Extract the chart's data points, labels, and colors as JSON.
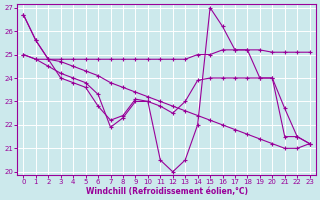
{
  "xlabel": "Windchill (Refroidissement éolien,°C)",
  "xlim_min": -0.5,
  "xlim_max": 23.5,
  "ylim_min": 19.85,
  "ylim_max": 27.15,
  "yticks": [
    20,
    21,
    22,
    23,
    24,
    25,
    26,
    27
  ],
  "xticks": [
    0,
    1,
    2,
    3,
    4,
    5,
    6,
    7,
    8,
    9,
    10,
    11,
    12,
    13,
    14,
    15,
    16,
    17,
    18,
    19,
    20,
    21,
    22,
    23
  ],
  "bg_color": "#cce9ec",
  "line_color": "#990099",
  "grid_color": "#ffffff",
  "series": [
    [
      26.7,
      25.6,
      24.8,
      24.7,
      24.5,
      24.3,
      24.1,
      23.8,
      23.6,
      23.4,
      23.2,
      23.0,
      22.8,
      22.6,
      22.4,
      22.2,
      22.0,
      21.8,
      21.6,
      21.4,
      21.2,
      21.0,
      21.0,
      21.2
    ],
    [
      25.0,
      24.8,
      24.8,
      24.8,
      24.8,
      24.8,
      24.8,
      24.8,
      24.8,
      24.8,
      24.8,
      24.8,
      24.8,
      24.8,
      25.0,
      25.0,
      25.2,
      25.2,
      25.2,
      25.2,
      25.1,
      25.1,
      25.1,
      25.1
    ],
    [
      26.7,
      25.6,
      24.8,
      24.0,
      23.8,
      23.6,
      22.8,
      22.2,
      22.4,
      23.1,
      23.0,
      20.5,
      20.0,
      20.5,
      22.0,
      27.0,
      26.2,
      25.2,
      25.2,
      24.0,
      24.0,
      22.7,
      21.5,
      21.2
    ],
    [
      25.0,
      24.8,
      24.5,
      24.2,
      24.0,
      23.8,
      23.3,
      21.9,
      22.3,
      23.0,
      23.0,
      22.8,
      22.5,
      23.0,
      23.9,
      24.0,
      24.0,
      24.0,
      24.0,
      24.0,
      24.0,
      21.5,
      21.5,
      21.2
    ]
  ]
}
